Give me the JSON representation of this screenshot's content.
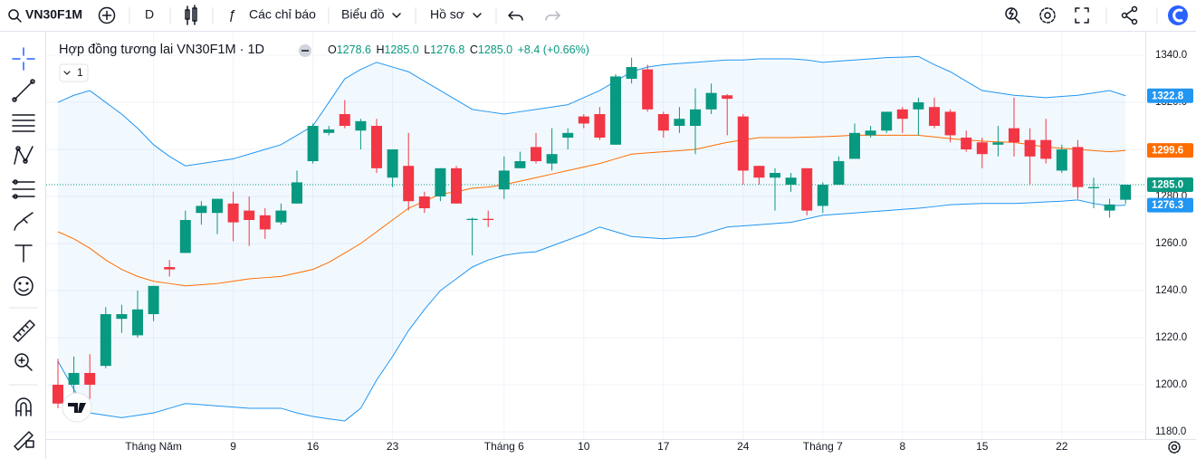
{
  "toolbar": {
    "symbol": "VN30F1M",
    "interval": "D",
    "indicators": "Các chỉ báo",
    "chart_type": "Biểu đồ",
    "profile": "Hồ sơ"
  },
  "chart_data": {
    "type": "candlestick",
    "title": "Hợp đồng tương lai VN30F1M · 1D",
    "ohlc_letters": [
      "O",
      "H",
      "L",
      "C"
    ],
    "last_labels": {
      "open": "1278.6",
      "high": "1285.0",
      "low": "1276.8",
      "close": "1285.0",
      "change": "+8.4",
      "change_pct": "(+0.66%)"
    },
    "dropdown": "1",
    "categories": [
      null,
      null,
      null,
      null,
      null,
      null,
      "Tháng Năm",
      null,
      null,
      null,
      null,
      "9",
      null,
      null,
      null,
      null,
      "16",
      null,
      null,
      null,
      null,
      "23",
      null,
      null,
      null,
      null,
      null,
      null,
      "Tháng 6",
      null,
      null,
      null,
      null,
      "10",
      null,
      null,
      null,
      null,
      "17",
      null,
      null,
      null,
      null,
      "24",
      null,
      null,
      null,
      null,
      "Tháng 7",
      null,
      null,
      null,
      null,
      "8",
      null,
      null,
      null,
      null,
      "15",
      null,
      null,
      null,
      null,
      "22",
      null,
      null,
      null,
      null
    ],
    "open": [
      1200,
      1200,
      1205,
      1208,
      1228,
      1221,
      1230,
      1250,
      1256,
      1273,
      1273,
      1277,
      1274,
      1272,
      1269,
      1277,
      1295,
      1307,
      1315,
      1308,
      1310,
      1288,
      1293,
      1280,
      1280,
      1292,
      1270,
      1270.5,
      1283,
      1292,
      1301,
      1294,
      1305,
      1314,
      1315,
      1302,
      1330,
      1334,
      1315,
      1310,
      1310,
      1317,
      1323,
      1314,
      1293,
      1288,
      1285,
      1292,
      1276,
      1285,
      1296,
      1306,
      1308,
      1317,
      1317,
      1318,
      1316,
      1305,
      1303,
      1302,
      1309,
      1304,
      1304,
      1291,
      1301,
      1283.5,
      1274,
      1278.6
    ],
    "high": [
      1211,
      1212,
      1213,
      1233,
      1234,
      1240,
      1242,
      1253,
      1274,
      1278,
      1279,
      1282,
      1280,
      1275,
      1277,
      1291,
      1311,
      1310,
      1321,
      1313,
      1313,
      1300,
      1307,
      1282,
      1292,
      1293,
      1271,
      1274,
      1297,
      1299,
      1307,
      1309,
      1309,
      1315,
      1318,
      1332,
      1339,
      1336,
      1316,
      1318,
      1326,
      1328,
      1323.5,
      1315,
      1293,
      1292,
      1290,
      1292,
      1286,
      1297,
      1311,
      1310,
      1316,
      1318,
      1322,
      1322,
      1317,
      1308,
      1305,
      1310,
      1322,
      1309,
      1313,
      1302,
      1304,
      1288,
      1279,
      1285
    ],
    "low": [
      1190,
      1195,
      1194,
      1207,
      1222,
      1220,
      1227,
      1246,
      1256,
      1268,
      1264,
      1261,
      1259,
      1262,
      1268,
      1277,
      1294,
      1306,
      1309,
      1300,
      1290,
      1284,
      1274,
      1273,
      1278,
      1277,
      1255,
      1267,
      1279,
      1292,
      1294,
      1291,
      1300,
      1309,
      1304,
      1302,
      1328,
      1316,
      1305,
      1307,
      1298,
      1315,
      1306,
      1285,
      1285,
      1274,
      1282,
      1272,
      1273,
      1285,
      1296,
      1305,
      1307,
      1307,
      1306,
      1309,
      1303,
      1299,
      1292,
      1297,
      1297,
      1285,
      1294,
      1290,
      1279,
      1275,
      1271,
      1276.8
    ],
    "close": [
      1192,
      1205,
      1200,
      1230,
      1230,
      1232,
      1242,
      1249,
      1270,
      1276,
      1279,
      1269,
      1270,
      1266,
      1274,
      1286,
      1310,
      1308.5,
      1310,
      1312,
      1292,
      1300,
      1278,
      1275,
      1292,
      1277,
      1270.5,
      1270,
      1291,
      1295,
      1295,
      1298,
      1307,
      1311,
      1305,
      1331,
      1335,
      1317,
      1308,
      1313,
      1317,
      1324,
      1321.5,
      1291,
      1288,
      1290,
      1288,
      1274,
      1285,
      1295,
      1307,
      1308,
      1316,
      1313,
      1320,
      1310,
      1306,
      1300,
      1298,
      1303,
      1303,
      1297,
      1296,
      1300,
      1284,
      1284,
      1276.6,
      1285
    ],
    "up_color": "#089981",
    "down_color": "#f23645",
    "band_fill": "rgba(33,150,243,0.06)",
    "series": [
      {
        "color": "#2196f3",
        "values": [
          1320,
          1323,
          1325,
          1320,
          1315,
          1309,
          1302,
          1297,
          1293,
          1294,
          1295,
          1296,
          1298,
          1300,
          1302,
          1306,
          1310,
          1320,
          1330,
          1334,
          1337,
          1335,
          1333,
          1329,
          1325,
          1321,
          1317,
          1316,
          1315,
          1316,
          1317,
          1318,
          1319,
          1322,
          1325,
          1329,
          1333,
          1335,
          1336,
          1336.5,
          1337,
          1337.5,
          1338,
          1338,
          1338.5,
          1338.5,
          1338.5,
          1338,
          1337,
          1337.5,
          1338,
          1338.5,
          1339,
          1339.2,
          1339.5,
          1336,
          1333,
          1329,
          1325,
          1324,
          1323,
          1322.5,
          1322,
          1322.5,
          1323,
          1324,
          1325,
          1322.8
        ]
      },
      {
        "color": "#ff6d00",
        "values": [
          1265,
          1262,
          1258,
          1253,
          1249,
          1246,
          1244,
          1243,
          1242,
          1242.5,
          1243,
          1244,
          1245,
          1245.5,
          1246,
          1247.5,
          1249,
          1252,
          1256,
          1260,
          1265,
          1270,
          1275,
          1278,
          1281,
          1282,
          1283.5,
          1284,
          1285,
          1286.5,
          1288,
          1289.5,
          1291,
          1292.5,
          1294,
          1296,
          1298,
          1298.5,
          1299,
          1299.5,
          1300,
          1301.5,
          1303,
          1304,
          1305,
          1305,
          1305,
          1305.2,
          1305.4,
          1305.7,
          1306,
          1306,
          1306,
          1306,
          1306,
          1305.3,
          1304.6,
          1304,
          1303.5,
          1303.2,
          1303,
          1302,
          1301,
          1300.5,
          1300,
          1299.5,
          1299,
          1299.6
        ]
      },
      {
        "color": "#2196f3",
        "values": [
          1210,
          1198,
          1188,
          1187,
          1186,
          1187,
          1188,
          1190,
          1192,
          1191.5,
          1191,
          1190.5,
          1190,
          1190,
          1190,
          1188,
          1186.5,
          1185.5,
          1184.6,
          1190,
          1202,
          1212,
          1223,
          1232,
          1240,
          1245,
          1250,
          1253,
          1255,
          1256,
          1256.5,
          1259,
          1261.5,
          1264,
          1267,
          1265,
          1263,
          1262.5,
          1262,
          1262.5,
          1263,
          1265,
          1267,
          1267.5,
          1268,
          1268.5,
          1269,
          1270.5,
          1272,
          1272.5,
          1273,
          1273.5,
          1274,
          1274.5,
          1275,
          1275.7,
          1276.5,
          1276.8,
          1277,
          1277,
          1277,
          1277.3,
          1277.7,
          1278,
          1278.5,
          1277,
          1276,
          1276.3
        ]
      }
    ],
    "ylim": [
      1176.9,
      1348.1
    ],
    "yticks": [
      {
        "value": 1180,
        "label": "1180.0"
      },
      {
        "value": 1200,
        "label": "1200.0"
      },
      {
        "value": 1220,
        "label": "1220.0"
      },
      {
        "value": 1240,
        "label": "1240.0"
      },
      {
        "value": 1260,
        "label": "1260.0"
      },
      {
        "value": 1280,
        "label": "1280.0"
      },
      {
        "value": 1300,
        "label": "1300.0"
      },
      {
        "value": 1320,
        "label": "1320.0"
      },
      {
        "value": 1340,
        "label": "1340.0"
      }
    ],
    "grid": true
  }
}
